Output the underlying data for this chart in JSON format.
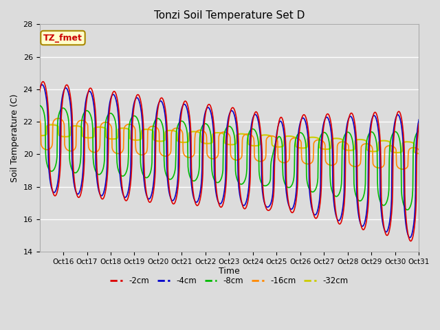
{
  "title": "Tonzi Soil Temperature Set D",
  "xlabel": "Time",
  "ylabel": "Soil Temperature (C)",
  "ylim": [
    14,
    28
  ],
  "xlim": [
    0,
    16
  ],
  "background_color": "#dcdcdc",
  "plot_bg_color": "#dcdcdc",
  "annotation_text": "TZ_fmet",
  "annotation_color": "#cc0000",
  "annotation_bg": "#ffffcc",
  "annotation_border": "#aa8800",
  "x_tick_labels": [
    "Oct 16",
    "Oct 17",
    "Oct 18",
    "Oct 19",
    "Oct 20",
    "Oct 21",
    "Oct 22",
    "Oct 23",
    "Oct 24",
    "Oct 25",
    "Oct 26",
    "Oct 27",
    "Oct 28",
    "Oct 29",
    "Oct 30",
    "Oct 31"
  ],
  "x_tick_positions": [
    1,
    2,
    3,
    4,
    5,
    6,
    7,
    8,
    9,
    10,
    11,
    12,
    13,
    14,
    15,
    16
  ],
  "yticks": [
    14,
    16,
    18,
    20,
    22,
    24,
    26,
    28
  ],
  "line_colors": {
    "-2cm": "#dd0000",
    "-4cm": "#0000cc",
    "-8cm": "#00bb00",
    "-16cm": "#ff8800",
    "-32cm": "#cccc00"
  },
  "line_widths": {
    "-2cm": 1.2,
    "-4cm": 1.2,
    "-8cm": 1.2,
    "-16cm": 1.2,
    "-32cm": 1.5
  }
}
